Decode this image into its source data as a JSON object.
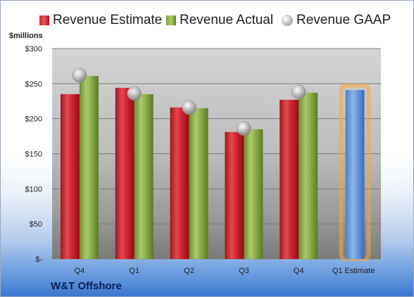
{
  "legend": {
    "estimate": "Revenue Estimate",
    "actual": "Revenue Actual",
    "gaap": "Revenue GAAP"
  },
  "unit_label": "$millions",
  "company": "W&T Offshore",
  "colors": {
    "estimate": "#c81e2a",
    "actual": "#8db04a",
    "gaap": "#b8b8b8",
    "forecast": "#6a97d4",
    "forecast_glow": "#f4a640"
  },
  "chart_data": {
    "type": "bar",
    "title": "",
    "xlabel": "",
    "ylabel": "$millions",
    "categories": [
      "Q4",
      "Q1",
      "Q2",
      "Q3",
      "Q4",
      "Q1 Estimate"
    ],
    "ylim": [
      0,
      300
    ],
    "yticks": [
      0,
      50,
      100,
      150,
      200,
      250,
      300
    ],
    "ytick_labels": [
      "$-",
      "$50",
      "$100",
      "$150",
      "$200",
      "$250",
      "$300"
    ],
    "grid": true,
    "legend_position": "top",
    "series": [
      {
        "name": "Revenue Estimate",
        "kind": "bar",
        "values": [
          235,
          244,
          216,
          181,
          227,
          241
        ]
      },
      {
        "name": "Revenue Actual",
        "kind": "bar",
        "values": [
          261,
          235,
          215,
          185,
          237,
          null
        ]
      },
      {
        "name": "Revenue GAAP",
        "kind": "marker",
        "values": [
          262,
          236,
          216,
          186,
          238,
          null
        ]
      }
    ]
  }
}
